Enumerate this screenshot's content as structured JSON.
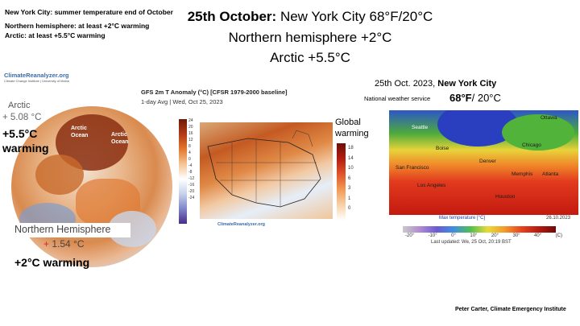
{
  "notes": {
    "line1": "New York City: summer temperature end of October",
    "line2": "Northern hemisphere: at least  +2°C warming",
    "line3": "Arctic: at least +5.5°C warming"
  },
  "title": {
    "date_bold": "25th October:",
    "nyc": " New York City 68°F/20°C",
    "nh": "Northern hemisphere +2°C",
    "arctic": "Arctic +5.5°C"
  },
  "left_panel": {
    "logo": "ClimateReanalyzer.org",
    "logo_sub": "Climate Change Institute | University of Maine",
    "arctic_label": "Arctic",
    "arctic_value": "+ 5.08 °C",
    "arctic_warming": "+5.5°C\nwarming",
    "ocean_label_1": "Arctic\nOcean",
    "ocean_label_2": "Arctic\nOcean",
    "nh_label": "Northern Hemisphere",
    "nh_plus": "+",
    "nh_value": " 1.54 °C",
    "nh_warming": "+2°C warming"
  },
  "middle_panel": {
    "title": "GFS 2m T Anomaly (°C) [CFSR 1979-2000 baseline]",
    "subtitle": "1-day Avg | Wed, Oct 25, 2023",
    "left_scale_ticks": [
      "24",
      "20",
      "16",
      "12",
      "8",
      "4",
      "0",
      "-4",
      "-8",
      "-12",
      "-16",
      "-20",
      "-24"
    ],
    "global_warming": "Global\nwarming",
    "scale_ticks": [
      "18",
      "14",
      "10",
      "6",
      "3",
      "1",
      "0"
    ],
    "logo": "ClimateReanalyzer.org"
  },
  "right_panel": {
    "header_date": "25th Oct. 2023, ",
    "header_city": "New York City",
    "nws": "National weather service",
    "temp_f": "68°F",
    "temp_c": "/ 20°C",
    "cities": [
      "Seattle",
      "Ottawa",
      "Boise",
      "Chicago",
      "Denver",
      "San Francisco",
      "Memphis",
      "Atlanta",
      "Los Angeles",
      "Houston"
    ],
    "bar_title": "Max temperature [°C]",
    "bar_ticks": [
      "-20°",
      "-10°",
      "0°",
      "10°",
      "20°",
      "30°",
      "40°",
      "(C)"
    ],
    "date": "26.10.2023",
    "updated": "Last updated: We, 25 Oct, 20:19 BST"
  },
  "footer": "Peter Carter, Climate Emergency Institute"
}
